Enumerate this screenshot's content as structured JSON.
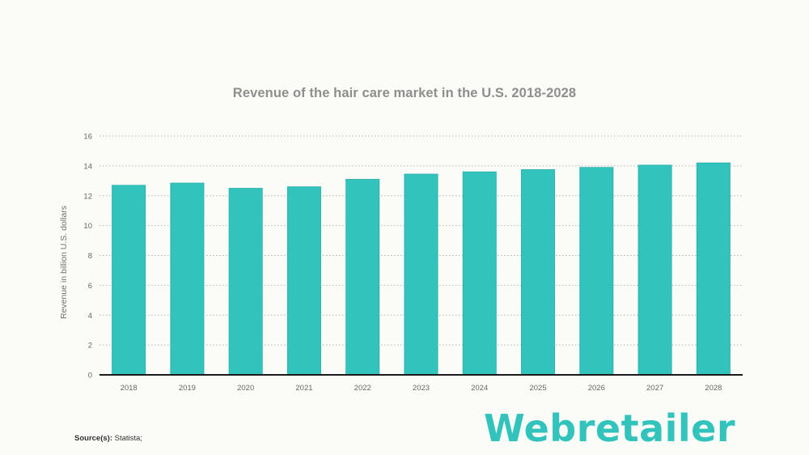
{
  "colors": {
    "bar": "#33c3bd",
    "bar_edge": "#2aaea9",
    "grid": "#b5b5b5",
    "axis": "#1a1a1a",
    "tick_text": "#666666",
    "title_text": "#8e8e8e",
    "brand": "#33c3bd"
  },
  "chart_data": {
    "type": "bar",
    "title": "Revenue of the hair care market in the U.S. 2018-2028",
    "xlabel": "",
    "ylabel": "Revenue in billion U.S. dollars",
    "categories": [
      "2018",
      "2019",
      "2020",
      "2021",
      "2022",
      "2023",
      "2024",
      "2025",
      "2026",
      "2027",
      "2028"
    ],
    "values": [
      12.7,
      12.85,
      12.5,
      12.6,
      13.1,
      13.45,
      13.6,
      13.75,
      13.9,
      14.05,
      14.2
    ],
    "ylim": [
      0,
      16
    ],
    "yticks": [
      "0",
      "2",
      "4",
      "6",
      "8",
      "10",
      "12",
      "14",
      "16"
    ],
    "grid": true,
    "legend": "none"
  },
  "source": {
    "label": "Source(s):",
    "text": "Statista;"
  },
  "brand": {
    "logo_text": "Webretailer",
    "icon": "webretailer-logo-icon"
  }
}
